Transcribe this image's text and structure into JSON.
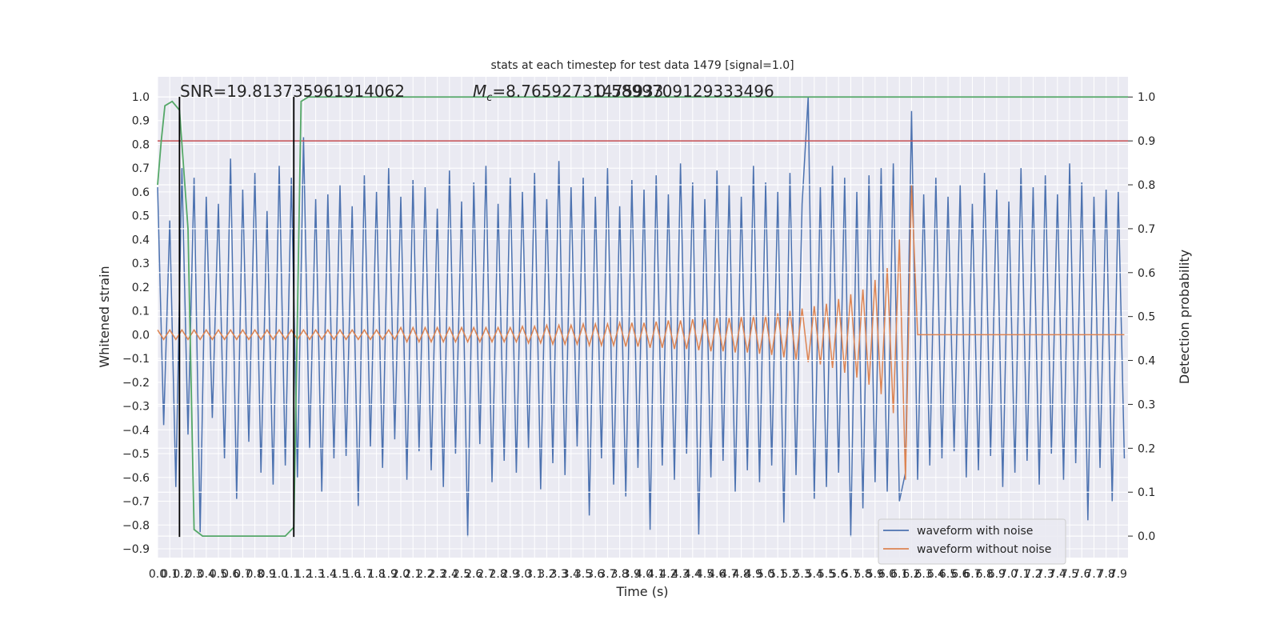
{
  "chart_data": {
    "type": "line",
    "title": "stats at each timestep for test data 1479 [signal=1.0]",
    "xlabel": "Time (s)",
    "ylabel": "Whitened strain",
    "y2label": "Detection probability",
    "background": "#eaeaf2",
    "grid": true,
    "legend": "lower right",
    "annotations": [
      "SNR=19.813735961914062",
      "0.5899709129333496"
    ],
    "mc_annotation": {
      "symbol": "M",
      "subscript": "c",
      "text": "=8.76592731475933"
    },
    "xlim": [
      0,
      7.98
    ],
    "ylim": [
      -0.937,
      1.084
    ],
    "y2lim": [
      -0.049,
      1.046
    ],
    "xticks": [
      {
        "value": 0,
        "label": "0.0"
      },
      0.1,
      0.2,
      0.3,
      0.4,
      0.5,
      0.6,
      0.7,
      0.8,
      0.9,
      {
        "value": 1,
        "label": "1.0"
      },
      1.1,
      1.2,
      1.3,
      1.4,
      1.5,
      1.6,
      1.7,
      1.8,
      1.9,
      {
        "value": 2,
        "label": "2.0"
      },
      2.1,
      2.2,
      2.3,
      2.4,
      2.5,
      2.6,
      2.7,
      2.8,
      2.9,
      {
        "value": 3,
        "label": "3.0"
      },
      3.1,
      3.2,
      3.3,
      3.4,
      3.5,
      3.6,
      3.7,
      3.8,
      3.9,
      {
        "value": 4,
        "label": "4.0"
      },
      4.1,
      4.2,
      4.3,
      4.4,
      4.5,
      4.6,
      4.7,
      4.8,
      4.9,
      {
        "value": 5,
        "label": "5.0"
      },
      5.1,
      5.2,
      5.3,
      5.4,
      5.5,
      5.6,
      5.7,
      5.8,
      5.9,
      {
        "value": 6,
        "label": "6.0"
      },
      6.1,
      6.2,
      6.3,
      6.4,
      6.5,
      6.6,
      6.7,
      6.8,
      6.9,
      {
        "value": 7,
        "label": "7.0"
      },
      7.1,
      7.2,
      7.3,
      7.4,
      7.5,
      7.6,
      7.7,
      7.8,
      7.9
    ],
    "yticks": [
      {
        "value": 1,
        "label": "1.0"
      },
      0.9,
      0.8,
      0.7,
      0.6,
      0.5,
      0.4,
      0.3,
      0.2,
      0.1,
      {
        "value": 0,
        "label": "0.0"
      },
      {
        "value": -0.1,
        "label": "−0.1"
      },
      {
        "value": -0.2,
        "label": "−0.2"
      },
      {
        "value": -0.3,
        "label": "−0.3"
      },
      {
        "value": -0.4,
        "label": "−0.4"
      },
      {
        "value": -0.5,
        "label": "−0.5"
      },
      {
        "value": -0.6,
        "label": "−0.6"
      },
      {
        "value": -0.7,
        "label": "−0.7"
      },
      {
        "value": -0.8,
        "label": "−0.8"
      },
      {
        "value": -0.9,
        "label": "−0.9"
      }
    ],
    "y2ticks": [
      {
        "value": 0,
        "label": "0.0"
      },
      0.1,
      0.2,
      0.3,
      0.4,
      0.5,
      0.6,
      0.7,
      0.8,
      0.9,
      {
        "value": 1,
        "label": "1.0"
      }
    ],
    "x": [
      0,
      0.05,
      0.1,
      0.15,
      0.2,
      0.25,
      0.3,
      0.35,
      0.4,
      0.45,
      0.5,
      0.55,
      0.6,
      0.65,
      0.7,
      0.75,
      0.8,
      0.85,
      0.9,
      0.95,
      1,
      1.05,
      1.1,
      1.15,
      1.2,
      1.25,
      1.3,
      1.35,
      1.4,
      1.45,
      1.5,
      1.55,
      1.6,
      1.65,
      1.7,
      1.75,
      1.8,
      1.85,
      1.9,
      1.95,
      2,
      2.05,
      2.1,
      2.15,
      2.2,
      2.25,
      2.3,
      2.35,
      2.4,
      2.45,
      2.5,
      2.55,
      2.6,
      2.65,
      2.7,
      2.75,
      2.8,
      2.85,
      2.9,
      2.95,
      3,
      3.05,
      3.1,
      3.15,
      3.2,
      3.25,
      3.3,
      3.35,
      3.4,
      3.45,
      3.5,
      3.55,
      3.6,
      3.65,
      3.7,
      3.75,
      3.8,
      3.85,
      3.9,
      3.95,
      4,
      4.05,
      4.1,
      4.15,
      4.2,
      4.25,
      4.3,
      4.35,
      4.4,
      4.45,
      4.5,
      4.55,
      4.6,
      4.65,
      4.7,
      4.75,
      4.8,
      4.85,
      4.9,
      4.95,
      5,
      5.05,
      5.1,
      5.15,
      5.2,
      5.25,
      5.3,
      5.35,
      5.4,
      5.45,
      5.5,
      5.55,
      5.6,
      5.65,
      5.7,
      5.75,
      5.8,
      5.85,
      5.9,
      5.95,
      6,
      6.05,
      6.1,
      6.15,
      6.2,
      6.25,
      6.3,
      6.35,
      6.4,
      6.45,
      6.5,
      6.55,
      6.6,
      6.65,
      6.7,
      6.75,
      6.8,
      6.85,
      6.9,
      6.95,
      7,
      7.05,
      7.1,
      7.15,
      7.2,
      7.25,
      7.3,
      7.35,
      7.4,
      7.45,
      7.5,
      7.55,
      7.6,
      7.65,
      7.7,
      7.75,
      7.8,
      7.85,
      7.9,
      7.95
    ],
    "series": [
      {
        "name": "waveform with noise",
        "color": "#4c72b0",
        "values": [
          0.62,
          -0.38,
          0.48,
          -0.64,
          0.7,
          -0.42,
          0.66,
          -0.83,
          0.58,
          -0.35,
          0.55,
          -0.52,
          0.74,
          -0.69,
          0.61,
          -0.45,
          0.68,
          -0.58,
          0.52,
          -0.63,
          0.71,
          -0.55,
          0.66,
          -0.6,
          0.83,
          -0.48,
          0.57,
          -0.66,
          0.59,
          -0.52,
          0.63,
          -0.51,
          0.54,
          -0.72,
          0.67,
          -0.47,
          0.6,
          -0.56,
          0.7,
          -0.44,
          0.58,
          -0.61,
          0.65,
          -0.49,
          0.62,
          -0.57,
          0.53,
          -0.64,
          0.69,
          -0.5,
          0.56,
          -0.85,
          0.64,
          -0.46,
          0.71,
          -0.62,
          0.55,
          -0.53,
          0.66,
          -0.58,
          0.6,
          -0.48,
          0.68,
          -0.65,
          0.57,
          -0.54,
          0.73,
          -0.59,
          0.62,
          -0.47,
          0.66,
          -0.76,
          0.58,
          -0.52,
          0.7,
          -0.63,
          0.54,
          -0.68,
          0.65,
          -0.56,
          0.61,
          -0.82,
          0.67,
          -0.55,
          0.59,
          -0.61,
          0.72,
          -0.5,
          0.64,
          -0.84,
          0.57,
          -0.6,
          0.69,
          -0.53,
          0.63,
          -0.66,
          0.58,
          -0.57,
          0.71,
          -0.62,
          0.64,
          -0.55,
          0.6,
          -0.79,
          0.68,
          -0.59,
          0.55,
          1.0,
          -0.69,
          0.62,
          -0.64,
          0.71,
          -0.58,
          0.66,
          -0.85,
          0.6,
          -0.73,
          0.67,
          -0.62,
          0.7,
          -0.66,
          0.72,
          -0.7,
          -0.58,
          0.94,
          -0.61,
          0.59,
          -0.55,
          0.66,
          -0.52,
          0.58,
          -0.49,
          0.63,
          -0.6,
          0.55,
          -0.57,
          0.68,
          -0.51,
          0.61,
          -0.64,
          0.56,
          -0.58,
          0.7,
          -0.53,
          0.62,
          -0.63,
          0.67,
          -0.5,
          0.59,
          -0.61,
          0.72,
          -0.54,
          0.64,
          -0.78,
          0.58,
          -0.56,
          0.61,
          -0.7,
          0.6,
          -0.52
        ]
      },
      {
        "name": "waveform without noise",
        "color": "#dd8452",
        "values": [
          0.02,
          -0.02,
          0.02,
          -0.02,
          0.02,
          -0.02,
          0.02,
          -0.02,
          0.02,
          -0.02,
          0.02,
          -0.02,
          0.02,
          -0.02,
          0.02,
          -0.02,
          0.02,
          -0.02,
          0.02,
          -0.02,
          0.02,
          -0.02,
          0.02,
          -0.02,
          0.02,
          -0.02,
          0.02,
          -0.02,
          0.02,
          -0.02,
          0.02,
          -0.02,
          0.02,
          -0.02,
          0.02,
          -0.02,
          0.02,
          -0.02,
          0.02,
          -0.02,
          0.03,
          -0.03,
          0.03,
          -0.03,
          0.03,
          -0.03,
          0.03,
          -0.03,
          0.03,
          -0.03,
          0.03,
          -0.03,
          0.03,
          -0.03,
          0.03,
          -0.03,
          0.03,
          -0.03,
          0.03,
          -0.03,
          0.035,
          -0.035,
          0.035,
          -0.035,
          0.04,
          -0.04,
          0.04,
          -0.04,
          0.04,
          -0.04,
          0.045,
          -0.045,
          0.045,
          -0.045,
          0.045,
          -0.045,
          0.05,
          -0.05,
          0.05,
          -0.05,
          0.05,
          -0.055,
          0.055,
          -0.055,
          0.06,
          -0.06,
          0.06,
          -0.06,
          0.065,
          -0.065,
          0.065,
          -0.07,
          0.07,
          -0.07,
          0.07,
          -0.075,
          0.075,
          -0.075,
          0.08,
          -0.08,
          0.08,
          -0.085,
          0.09,
          -0.095,
          0.1,
          -0.105,
          0.11,
          -0.115,
          0.12,
          -0.125,
          0.13,
          -0.14,
          0.15,
          -0.16,
          0.17,
          -0.18,
          0.19,
          -0.21,
          0.23,
          -0.25,
          0.28,
          -0.33,
          0.4,
          -0.61,
          0.63,
          0,
          0,
          0,
          0,
          0,
          0,
          0,
          0,
          0,
          0,
          0,
          0,
          0,
          0,
          0,
          0,
          0,
          0,
          0,
          0,
          0,
          0,
          0,
          0,
          0,
          0,
          0,
          0,
          0,
          0,
          0,
          0,
          0,
          0,
          0
        ]
      },
      {
        "axis": "y2",
        "color": "#55a868",
        "x": [
          0,
          0.03,
          0.06,
          0.12,
          0.18,
          0.25,
          0.3,
          0.37,
          1.05,
          1.12,
          1.18,
          1.24,
          7.98
        ],
        "values": [
          0.8,
          0.9,
          0.98,
          0.99,
          0.97,
          0.7,
          0.015,
          0,
          0,
          0.02,
          0.99,
          1,
          1
        ]
      }
    ],
    "hlines_y2": [
      {
        "value": 0.9,
        "color": "#c44e52"
      }
    ],
    "vlines": [
      {
        "x": 0.18,
        "ymin": -0.85,
        "ymax": 1.0,
        "color": "#000000"
      },
      {
        "x": 1.12,
        "ymin": -0.85,
        "ymax": 1.0,
        "color": "#000000"
      }
    ]
  }
}
